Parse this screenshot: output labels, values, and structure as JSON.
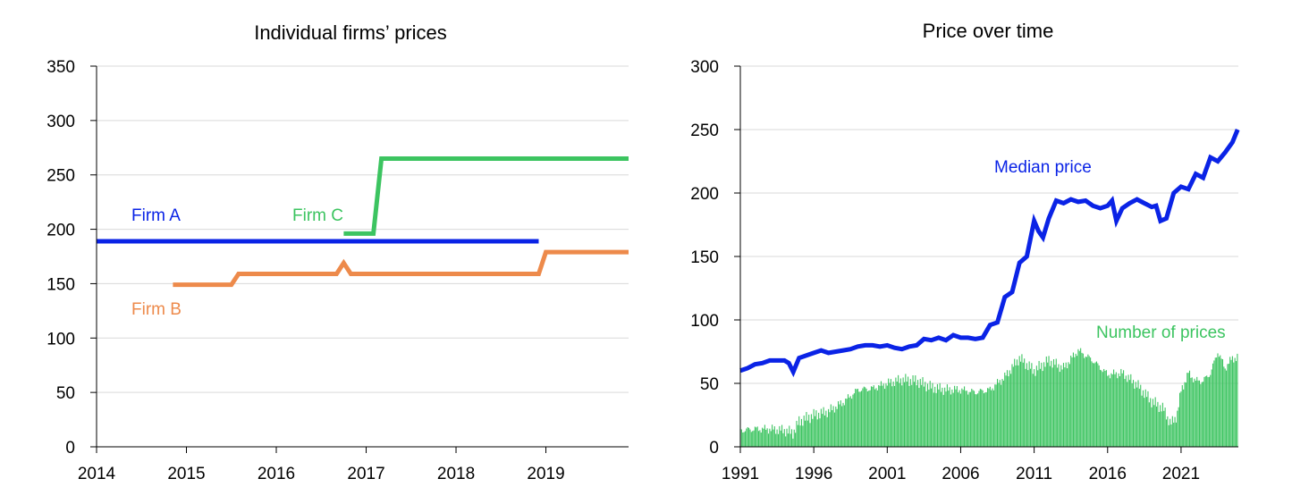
{
  "chart_data": [
    {
      "type": "line",
      "title": "Individual firms’ prices",
      "xlabel": "",
      "ylabel": "",
      "xlim": [
        2014,
        2019.92
      ],
      "ylim": [
        0,
        350
      ],
      "y_ticks": [
        0,
        50,
        100,
        150,
        200,
        250,
        300,
        350
      ],
      "x_ticks": [
        2014,
        2015,
        2016,
        2017,
        2018,
        2019
      ],
      "grid": "horizontal",
      "series": [
        {
          "name": "Firm A",
          "color": "#0a23e6",
          "x": [
            2014.0,
            2018.92
          ],
          "y": [
            189,
            189
          ]
        },
        {
          "name": "Firm B",
          "color": "#ed8a4b",
          "x": [
            2014.85,
            2015.5,
            2015.58,
            2016.67,
            2016.75,
            2016.83,
            2018.92,
            2019.0,
            2019.92
          ],
          "y": [
            149,
            149,
            159,
            159,
            169,
            159,
            159,
            179,
            179
          ]
        },
        {
          "name": "Firm C",
          "color": "#3cc460",
          "x": [
            2016.75,
            2017.08,
            2017.17,
            2019.92
          ],
          "y": [
            196,
            196,
            265,
            265
          ]
        }
      ]
    },
    {
      "type": "line",
      "title": "Price over time",
      "xlabel": "",
      "ylabel": "",
      "xlim": [
        1991,
        2024.9
      ],
      "ylim": [
        0,
        300
      ],
      "y_ticks": [
        0,
        50,
        100,
        150,
        200,
        250,
        300
      ],
      "x_ticks": [
        1991,
        1996,
        2001,
        2006,
        2011,
        2016,
        2021
      ],
      "grid": "horizontal",
      "series": [
        {
          "name": "Median price",
          "type": "line",
          "color": "#0a23e6",
          "x": [
            1991.0,
            1991.5,
            1992.0,
            1992.5,
            1993.0,
            1993.5,
            1994.0,
            1994.3,
            1994.6,
            1995.0,
            1995.5,
            1996.0,
            1996.5,
            1997.0,
            1997.5,
            1998.0,
            1998.5,
            1999.0,
            1999.5,
            2000.0,
            2000.5,
            2001.0,
            2001.5,
            2002.0,
            2002.5,
            2003.0,
            2003.5,
            2004.0,
            2004.5,
            2005.0,
            2005.5,
            2006.0,
            2006.5,
            2007.0,
            2007.5,
            2008.0,
            2008.5,
            2009.0,
            2009.5,
            2010.0,
            2010.5,
            2011.0,
            2011.3,
            2011.6,
            2012.0,
            2012.5,
            2013.0,
            2013.5,
            2014.0,
            2014.5,
            2015.0,
            2015.5,
            2016.0,
            2016.3,
            2016.6,
            2017.0,
            2017.5,
            2018.0,
            2018.5,
            2019.0,
            2019.3,
            2019.6,
            2020.0,
            2020.5,
            2021.0,
            2021.5,
            2022.0,
            2022.5,
            2023.0,
            2023.5,
            2024.0,
            2024.5,
            2024.85
          ],
          "y": [
            60,
            62,
            65,
            66,
            68,
            68,
            68,
            66,
            59,
            70,
            72,
            74,
            76,
            74,
            75,
            76,
            77,
            79,
            80,
            80,
            79,
            80,
            78,
            77,
            79,
            80,
            85,
            84,
            86,
            84,
            88,
            86,
            86,
            85,
            86,
            96,
            98,
            118,
            122,
            145,
            150,
            178,
            170,
            165,
            180,
            194,
            192,
            195,
            193,
            194,
            190,
            188,
            190,
            194,
            178,
            188,
            192,
            195,
            192,
            189,
            190,
            178,
            180,
            200,
            205,
            203,
            215,
            212,
            228,
            225,
            232,
            240,
            250
          ]
        },
        {
          "name": "Number of prices",
          "type": "bar",
          "color": "#3cc460",
          "x": [
            1991.0,
            1992.0,
            1993.0,
            1994.0,
            1994.6,
            1995.0,
            1996.0,
            1997.0,
            1998.0,
            1999.0,
            2000.0,
            2001.0,
            2002.0,
            2003.0,
            2004.0,
            2005.0,
            2006.0,
            2007.0,
            2008.0,
            2009.0,
            2010.0,
            2011.0,
            2012.0,
            2013.0,
            2014.0,
            2015.0,
            2016.0,
            2017.0,
            2018.0,
            2019.0,
            2019.8,
            2020.3,
            2020.7,
            2021.0,
            2021.5,
            2022.0,
            2022.5,
            2023.0,
            2023.5,
            2024.0,
            2024.5
          ],
          "y": [
            13,
            14,
            14,
            13,
            11,
            20,
            25,
            28,
            35,
            45,
            46,
            50,
            53,
            52,
            47,
            45,
            45,
            43,
            45,
            55,
            70,
            60,
            68,
            62,
            76,
            68,
            57,
            58,
            49,
            36,
            30,
            18,
            24,
            44,
            58,
            52,
            52,
            58,
            75,
            62,
            70
          ]
        }
      ]
    }
  ],
  "annotations": {
    "firm_a": "Firm A",
    "firm_b": "Firm B",
    "firm_c": "Firm C",
    "median_price": "Median price",
    "number_of_prices": "Number of prices"
  }
}
